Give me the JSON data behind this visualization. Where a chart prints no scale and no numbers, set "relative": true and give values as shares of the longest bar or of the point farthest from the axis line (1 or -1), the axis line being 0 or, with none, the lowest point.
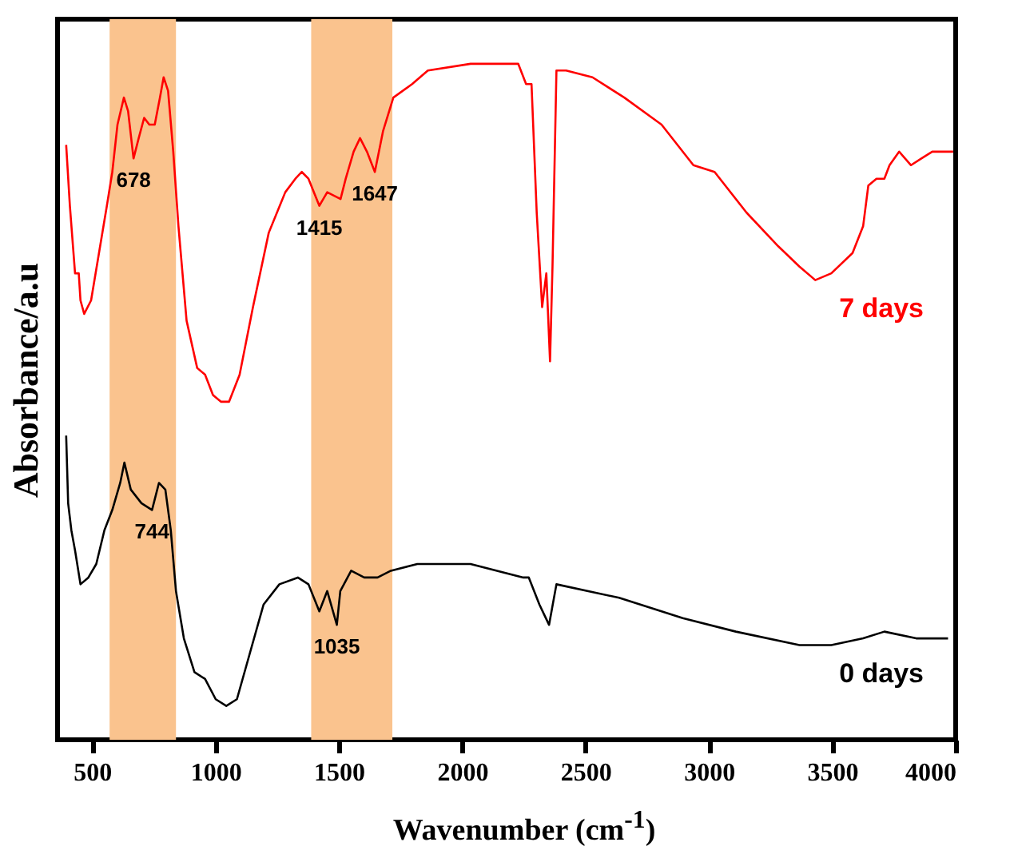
{
  "chart_data": {
    "type": "line",
    "xlabel": "Wavenumber (cm$^{-1}$)",
    "ylabel": "Absorbance/a.u",
    "relative": true,
    "tick_labels": "x",
    "xlim": [
      360,
      4000
    ],
    "xticks": [
      500,
      1000,
      1500,
      2000,
      2500,
      3000,
      3500,
      4000
    ],
    "bands": [
      {
        "axis": "x",
        "from": 571,
        "to": 840,
        "color": "#fac38e"
      },
      {
        "axis": "x",
        "from": 1388,
        "to": 1717,
        "color": "#fac38e"
      }
    ],
    "annotations": [
      {
        "text": "678",
        "x": 668,
        "y": 0.86
      },
      {
        "text": "1415",
        "x": 1421,
        "y": 0.79
      },
      {
        "text": "1647",
        "x": 1646,
        "y": 0.84
      },
      {
        "text": "744",
        "x": 743,
        "y": 0.34
      },
      {
        "text": "1035",
        "x": 1492,
        "y": 0.17
      }
    ],
    "series": [
      {
        "name": "7 days",
        "color": "#ff0000",
        "x": [
          395,
          410,
          431,
          446,
          453,
          468,
          496,
          528,
          560,
          582,
          603,
          629,
          646,
          668,
          689,
          711,
          732,
          754,
          775,
          790,
          808,
          829,
          850,
          883,
          926,
          958,
          990,
          1023,
          1055,
          1098,
          1152,
          1216,
          1283,
          1324,
          1350,
          1377,
          1421,
          1453,
          1507,
          1528,
          1560,
          1586,
          1614,
          1646,
          1679,
          1721,
          1797,
          1861,
          2034,
          2206,
          2227,
          2259,
          2281,
          2302,
          2324,
          2341,
          2356,
          2366,
          2382,
          2421,
          2528,
          2657,
          2808,
          2937,
          3023,
          3152,
          3281,
          3367,
          3431,
          3496,
          3582,
          3625,
          3646,
          3679,
          3711,
          3732,
          3771,
          3819,
          3861,
          3905,
          3990
        ],
        "values": [
          0.88,
          0.79,
          0.69,
          0.69,
          0.65,
          0.63,
          0.65,
          0.72,
          0.79,
          0.84,
          0.91,
          0.95,
          0.93,
          0.86,
          0.89,
          0.92,
          0.91,
          0.91,
          0.95,
          0.98,
          0.96,
          0.87,
          0.76,
          0.62,
          0.55,
          0.54,
          0.51,
          0.5,
          0.5,
          0.54,
          0.64,
          0.75,
          0.81,
          0.83,
          0.84,
          0.83,
          0.79,
          0.81,
          0.8,
          0.83,
          0.87,
          0.89,
          0.87,
          0.84,
          0.9,
          0.95,
          0.97,
          0.99,
          1.0,
          1.0,
          1.0,
          0.97,
          0.97,
          0.78,
          0.64,
          0.69,
          0.56,
          0.7,
          0.99,
          0.99,
          0.98,
          0.95,
          0.91,
          0.85,
          0.84,
          0.78,
          0.73,
          0.7,
          0.68,
          0.69,
          0.72,
          0.76,
          0.82,
          0.83,
          0.83,
          0.85,
          0.87,
          0.85,
          0.86,
          0.87,
          0.87
        ]
      },
      {
        "name": "0 days",
        "color": "#000000",
        "x": [
          395,
          403,
          416,
          431,
          453,
          485,
          517,
          550,
          582,
          614,
          631,
          657,
          700,
          743,
          771,
          797,
          819,
          840,
          872,
          915,
          958,
          1001,
          1044,
          1087,
          1141,
          1195,
          1259,
          1334,
          1377,
          1421,
          1453,
          1492,
          1506,
          1550,
          1603,
          1657,
          1711,
          1818,
          2034,
          2248,
          2270,
          2313,
          2352,
          2382,
          2636,
          2894,
          3109,
          3367,
          3496,
          3625,
          3711,
          3840,
          3969
        ],
        "values": [
          0.45,
          0.35,
          0.31,
          0.28,
          0.23,
          0.24,
          0.26,
          0.31,
          0.34,
          0.38,
          0.41,
          0.37,
          0.35,
          0.34,
          0.38,
          0.37,
          0.31,
          0.22,
          0.15,
          0.1,
          0.09,
          0.06,
          0.05,
          0.06,
          0.13,
          0.2,
          0.23,
          0.24,
          0.23,
          0.19,
          0.22,
          0.17,
          0.22,
          0.25,
          0.24,
          0.24,
          0.25,
          0.26,
          0.26,
          0.24,
          0.24,
          0.2,
          0.17,
          0.23,
          0.21,
          0.18,
          0.16,
          0.14,
          0.14,
          0.15,
          0.16,
          0.15,
          0.15
        ]
      }
    ]
  }
}
